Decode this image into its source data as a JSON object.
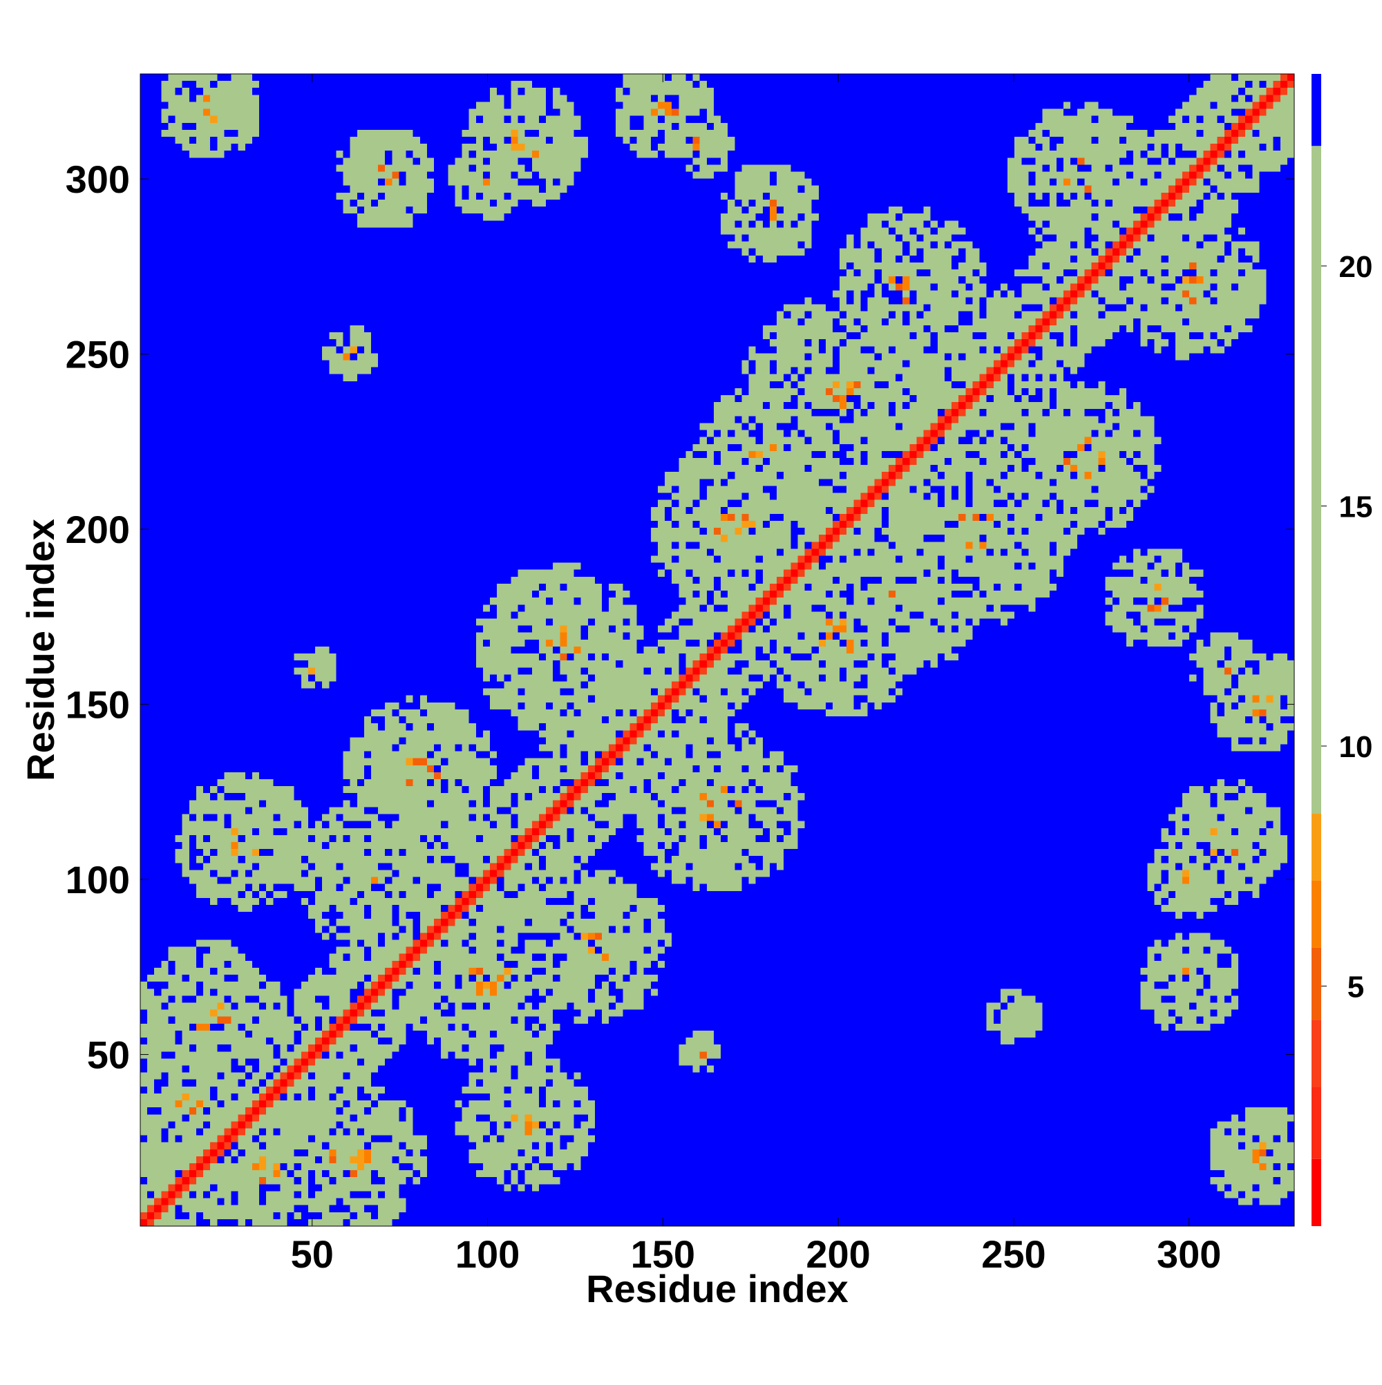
{
  "chart_data": {
    "type": "heatmap",
    "title": "",
    "xlabel": "Residue index",
    "ylabel": "Residue index",
    "xlim": [
      1,
      330
    ],
    "ylim": [
      1,
      330
    ],
    "x_ticks": [
      50,
      100,
      150,
      200,
      250,
      300
    ],
    "y_ticks": [
      50,
      100,
      150,
      200,
      250,
      300
    ],
    "n_residues": 330,
    "grid": false,
    "colorbar": {
      "range": [
        0,
        24
      ],
      "ticks": [
        5,
        10,
        15,
        20
      ],
      "bins": [
        {
          "from": 0,
          "to": 1.4,
          "color": "#ff0000"
        },
        {
          "from": 1.4,
          "to": 2.9,
          "color": "#fb2b14"
        },
        {
          "from": 2.9,
          "to": 4.3,
          "color": "#f94018"
        },
        {
          "from": 4.3,
          "to": 5.8,
          "color": "#f46008"
        },
        {
          "from": 5.8,
          "to": 7.2,
          "color": "#fb8000"
        },
        {
          "from": 7.2,
          "to": 8.6,
          "color": "#f99e14"
        },
        {
          "from": 8.6,
          "to": 22.5,
          "color": "#a8c88c"
        },
        {
          "from": 22.5,
          "to": 24,
          "color": "#0000ff"
        }
      ]
    },
    "background_color": "#0000ff",
    "description_of_values": "distance map; colors keyed to colorbar bins",
    "features": {
      "diagonal": {
        "start": 1,
        "end": 330,
        "core_color": "#ff0000",
        "flank_color": "#f46008"
      },
      "helix_bands": [
        {
          "center": [
            85,
            85
          ],
          "axis": "anti",
          "length": 60,
          "width": 6
        },
        {
          "center": [
            70,
            70
          ],
          "axis": "anti",
          "length": 45,
          "width": 5
        },
        {
          "center": [
            195,
            195
          ],
          "axis": "anti",
          "length": 50,
          "width": 5
        },
        {
          "center": [
            160,
            160
          ],
          "axis": "anti",
          "length": 40,
          "width": 5
        },
        {
          "center": [
            250,
            250
          ],
          "axis": "anti",
          "length": 40,
          "width": 5
        }
      ],
      "contact_blobs": [
        [
          35,
          15,
          18
        ],
        [
          15,
          35,
          18
        ],
        [
          60,
          20,
          22
        ],
        [
          20,
          60,
          22
        ],
        [
          110,
          30,
          20
        ],
        [
          30,
          110,
          20
        ],
        [
          100,
          70,
          25
        ],
        [
          70,
          100,
          25
        ],
        [
          130,
          80,
          22
        ],
        [
          80,
          130,
          22
        ],
        [
          165,
          120,
          25
        ],
        [
          120,
          165,
          25
        ],
        [
          200,
          170,
          25
        ],
        [
          170,
          200,
          25
        ],
        [
          220,
          180,
          22
        ],
        [
          180,
          220,
          22
        ],
        [
          240,
          200,
          28
        ],
        [
          200,
          240,
          28
        ],
        [
          270,
          220,
          22
        ],
        [
          220,
          270,
          22
        ],
        [
          300,
          270,
          22
        ],
        [
          270,
          300,
          22
        ],
        [
          310,
          110,
          18
        ],
        [
          110,
          310,
          18
        ],
        [
          300,
          70,
          15
        ],
        [
          70,
          300,
          15
        ],
        [
          290,
          180,
          15
        ],
        [
          180,
          290,
          15
        ],
        [
          320,
          20,
          15
        ],
        [
          20,
          320,
          15
        ],
        [
          250,
          60,
          8
        ],
        [
          60,
          250,
          8
        ],
        [
          160,
          50,
          6
        ],
        [
          50,
          160,
          6
        ],
        [
          320,
          150,
          15
        ],
        [
          150,
          320,
          15
        ],
        [
          100,
          300,
          12
        ],
        [
          300,
          100,
          12
        ],
        [
          160,
          310,
          10
        ],
        [
          310,
          160,
          10
        ]
      ]
    }
  }
}
